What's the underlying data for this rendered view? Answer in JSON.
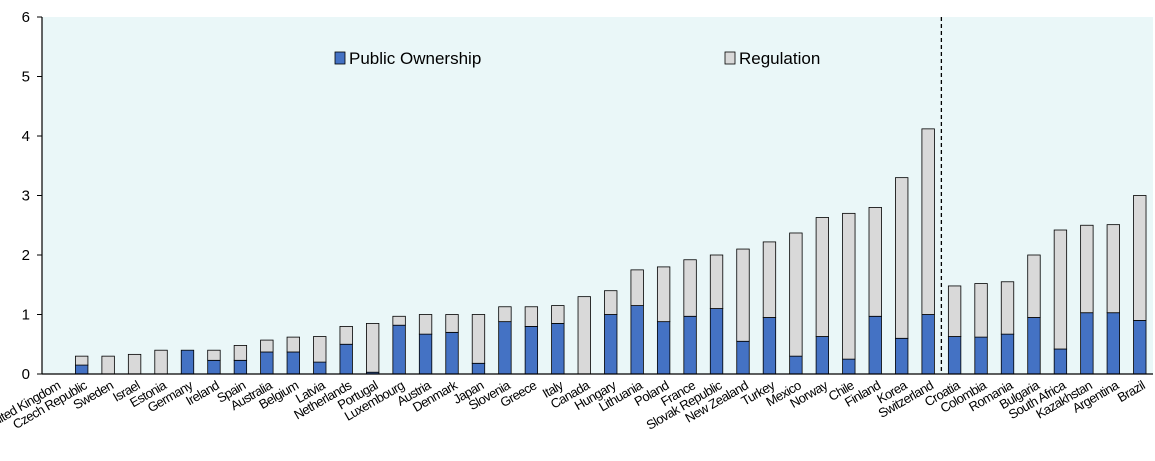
{
  "chart_data": {
    "type": "bar",
    "stacked": true,
    "categories": [
      "United Kingdom",
      "Czech Republic",
      "Sweden",
      "Israel",
      "Estonia",
      "Germany",
      "Ireland",
      "Spain",
      "Australia",
      "Belgium",
      "Latvia",
      "Netherlands",
      "Portugal",
      "Luxembourg",
      "Austria",
      "Denmark",
      "Japan",
      "Slovenia",
      "Greece",
      "Italy",
      "Canada",
      "Hungary",
      "Lithuania",
      "Poland",
      "France",
      "Slovak Republic",
      "New Zealand",
      "Turkey",
      "Mexico",
      "Norway",
      "Chile",
      "Finland",
      "Korea",
      "Switzerland",
      "Croatia",
      "Colombia",
      "Romania",
      "Bulgaria",
      "South Africa",
      "Kazakhstan",
      "Argentina",
      "Brazil"
    ],
    "series": [
      {
        "name": "Public Ownership",
        "values": [
          0.0,
          0.15,
          0.0,
          0.0,
          0.0,
          0.4,
          0.23,
          0.23,
          0.37,
          0.37,
          0.2,
          0.5,
          0.03,
          0.82,
          0.67,
          0.7,
          0.18,
          0.88,
          0.8,
          0.85,
          0.0,
          1.0,
          1.15,
          0.88,
          0.97,
          1.1,
          0.55,
          0.95,
          0.3,
          0.63,
          0.25,
          0.97,
          0.6,
          1.0,
          0.63,
          0.62,
          0.67,
          0.95,
          0.42,
          1.03,
          1.03,
          0.9
        ]
      },
      {
        "name": "Regulation",
        "values": [
          0.0,
          0.15,
          0.3,
          0.33,
          0.4,
          0.0,
          0.17,
          0.25,
          0.2,
          0.25,
          0.43,
          0.3,
          0.82,
          0.15,
          0.33,
          0.3,
          0.82,
          0.25,
          0.33,
          0.3,
          1.3,
          0.4,
          0.6,
          0.92,
          0.95,
          0.9,
          1.55,
          1.27,
          2.07,
          2.0,
          2.45,
          1.83,
          2.7,
          3.12,
          0.85,
          0.9,
          0.88,
          1.05,
          2.0,
          1.47,
          1.48,
          2.1
        ]
      }
    ],
    "ylim": [
      0,
      6
    ],
    "yticks": [
      0,
      1,
      2,
      3,
      4,
      5,
      6
    ],
    "grid": false,
    "legend_position": "top, inside plot",
    "divider_after": "Switzerland",
    "colors": {
      "public_ownership": "#4472C4",
      "regulation": "#D9D9D9",
      "plot_background": "#EAF7F8",
      "bar_outline": "#000000"
    }
  }
}
